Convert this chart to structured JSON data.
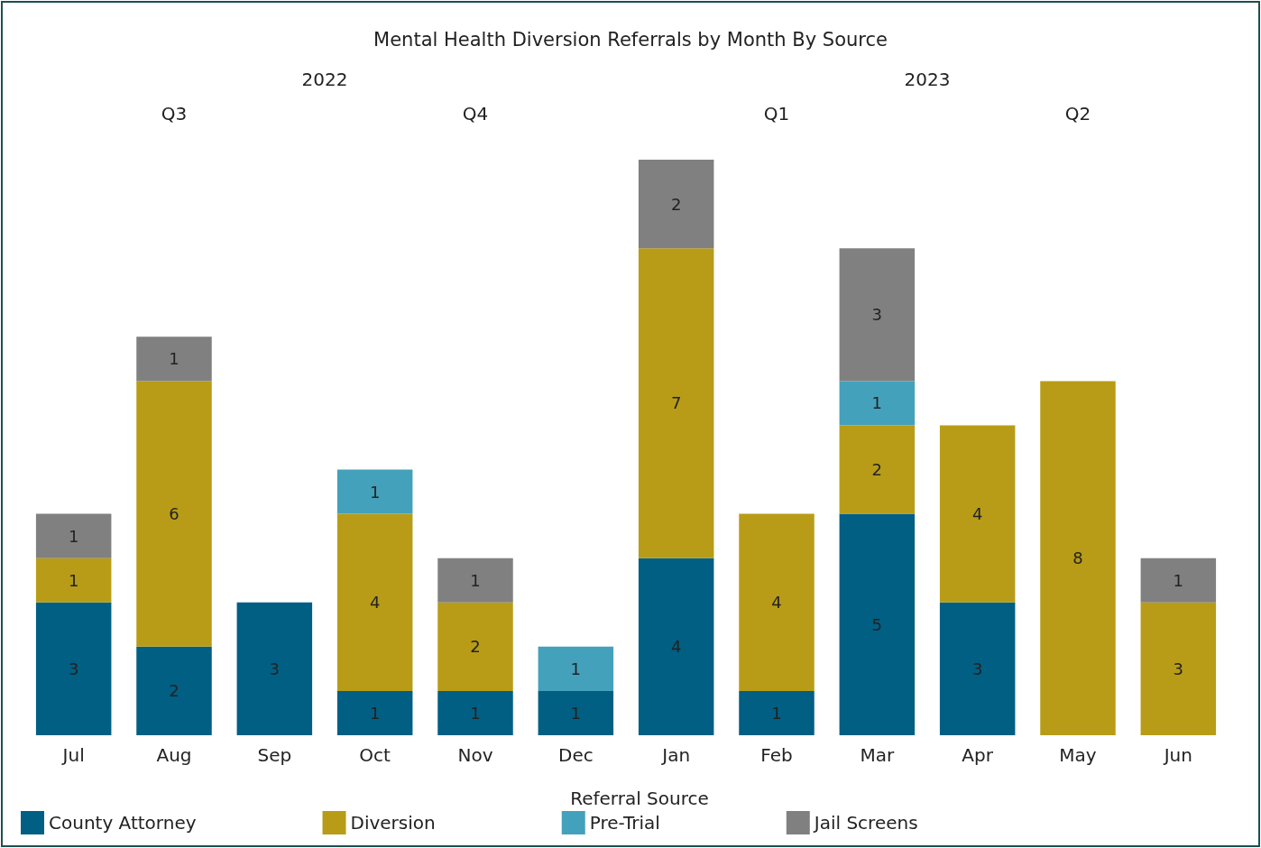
{
  "chart_data": {
    "type": "bar",
    "title": "Mental Health Diversion Referrals by Month By Source",
    "stacked": true,
    "legend": "bottom",
    "legend_title": "Referral Source",
    "grid": false,
    "categories": [
      "Jul",
      "Aug",
      "Sep",
      "Oct",
      "Nov",
      "Dec",
      "Jan",
      "Feb",
      "Mar",
      "Apr",
      "May",
      "Jun"
    ],
    "series": [
      {
        "name": "County Attorney",
        "color": "#005f83",
        "values": [
          3,
          2,
          3,
          1,
          1,
          1,
          4,
          1,
          5,
          3,
          0,
          0
        ],
        "value_labels": [
          "3",
          "2",
          "3",
          "1",
          "1",
          "1",
          "4",
          "1",
          "5",
          "3",
          null,
          null
        ]
      },
      {
        "name": "Diversion",
        "color": "#b89c17",
        "values": [
          1,
          6,
          0,
          4,
          2,
          0,
          7,
          4,
          2,
          4,
          8,
          3
        ],
        "value_labels": [
          "1",
          "6",
          null,
          "4",
          "2",
          null,
          "7",
          "4",
          "2",
          "4",
          "8",
          "3"
        ]
      },
      {
        "name": "Pre-Trial",
        "color": "#44a1bb",
        "values": [
          0,
          0,
          0,
          1,
          0,
          1,
          0,
          0,
          1,
          0,
          0,
          0
        ],
        "value_labels": [
          null,
          null,
          null,
          "1",
          null,
          "1",
          null,
          null,
          "1",
          null,
          null,
          null
        ]
      },
      {
        "name": "Jail Screens",
        "color": "#808080",
        "values": [
          1,
          1,
          0,
          0,
          1,
          0,
          2,
          0,
          3,
          0,
          0,
          1
        ],
        "value_labels": [
          "1",
          "1",
          null,
          null,
          "1",
          null,
          "2",
          null,
          "3",
          null,
          null,
          "1"
        ]
      }
    ],
    "annotations": [
      "2022",
      "2023",
      "Q3",
      "Q4",
      "Q1",
      "Q2"
    ]
  }
}
